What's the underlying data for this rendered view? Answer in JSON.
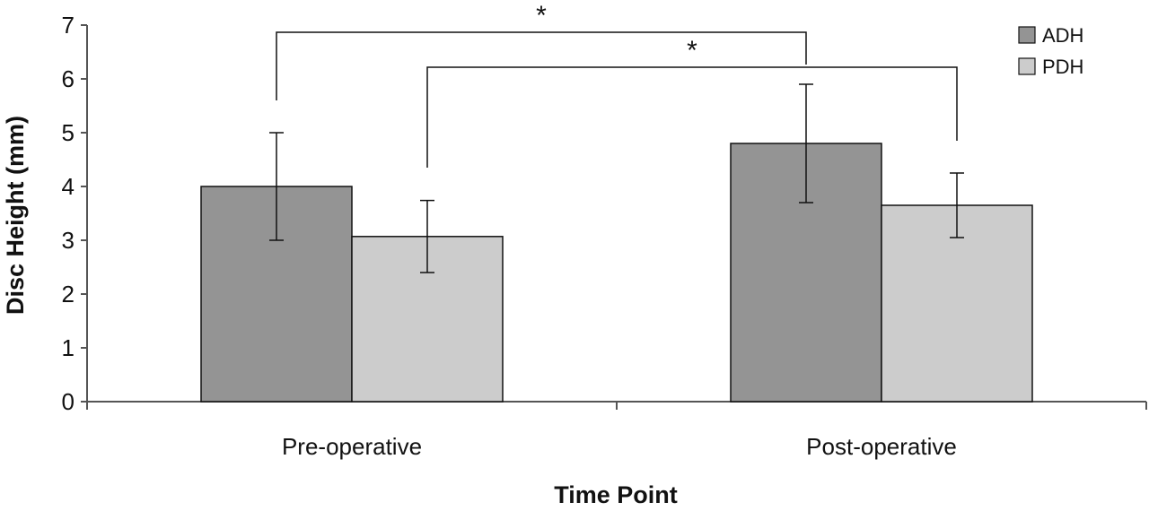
{
  "chart_data": {
    "type": "bar",
    "categories": [
      "Pre-operative",
      "Post-operative"
    ],
    "series": [
      {
        "name": "ADH",
        "values": [
          4.0,
          4.8
        ],
        "errors": [
          1.0,
          1.1
        ],
        "color": "#949494"
      },
      {
        "name": "PDH",
        "values": [
          3.07,
          3.65
        ],
        "errors": [
          0.67,
          0.6
        ],
        "color": "#cccccc"
      }
    ],
    "xlabel": "Time Point",
    "ylabel": "Disc Height (mm)",
    "ylim": [
      0,
      7
    ],
    "yticks": [
      "0",
      "1",
      "2",
      "3",
      "4",
      "5",
      "6",
      "7"
    ],
    "grid": false,
    "legend_position": "top-right",
    "significance": [
      {
        "from": "Pre-operative ADH",
        "to": "Post-operative ADH",
        "label": "*"
      },
      {
        "from": "Pre-operative PDH",
        "to": "Post-operative PDH",
        "label": "*"
      }
    ]
  }
}
